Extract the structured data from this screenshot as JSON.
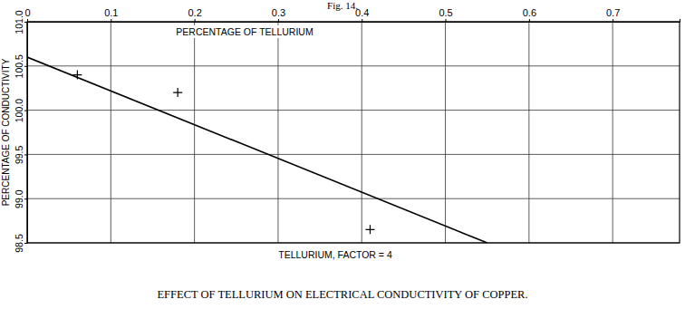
{
  "chart_data": {
    "type": "line",
    "title": "Fig. 14.",
    "subtitle": "EFFECT OF TELLURIUM ON ELECTRICAL CONDUCTIVITY OF COPPER.",
    "x_label": "PERCENTAGE OF TELLURIUM",
    "y_label": "PERCENTAGE OF CONDUCTIVITY",
    "annotations": [
      {
        "text": "TELLURIUM, FACTOR = 4"
      }
    ],
    "xlim": [
      0,
      0.78
    ],
    "xticks": [
      0,
      0.1,
      0.2,
      0.3,
      0.4,
      0.5,
      0.6,
      0.7
    ],
    "ylim": [
      98.5,
      101.0
    ],
    "yticks": [
      {
        "value": 98.5,
        "label": "98.5"
      },
      {
        "value": 99.0,
        "label": "99.0"
      },
      {
        "value": 99.5,
        "label": "99.5"
      },
      {
        "value": 100.0,
        "label": "100.0"
      },
      {
        "value": 100.5,
        "label": "100.5"
      },
      {
        "value": 101.0,
        "label": "101.0"
      }
    ],
    "grid": true,
    "series": [
      {
        "type": "line",
        "color": "#000000",
        "line_style": "solid",
        "x": [
          0,
          0.55
        ],
        "values": [
          100.6,
          98.5
        ]
      },
      {
        "type": "scatter",
        "color": "#000000",
        "marker": "plus",
        "x": [
          0.06,
          0.18,
          0.41
        ],
        "values": [
          100.4,
          100.2,
          98.65
        ]
      }
    ]
  }
}
